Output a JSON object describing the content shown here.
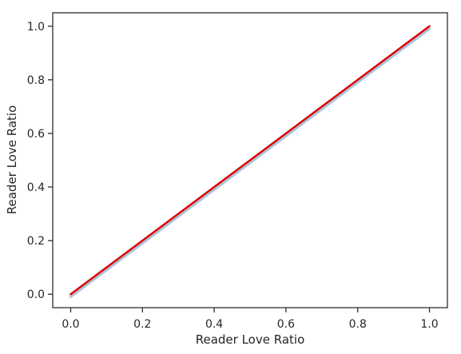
{
  "chart_data": {
    "type": "line",
    "title": "",
    "xlabel": "Reader Love Ratio",
    "ylabel": "Reader Love Ratio",
    "xlim": [
      -0.05,
      1.05
    ],
    "ylim": [
      -0.05,
      1.05
    ],
    "grid": false,
    "legend": "none",
    "xticks": [
      0.0,
      0.2,
      0.4,
      0.6,
      0.8,
      1.0
    ],
    "yticks": [
      0.0,
      0.2,
      0.4,
      0.6,
      0.8,
      1.0
    ],
    "xtick_labels": [
      "0.0",
      "0.2",
      "0.4",
      "0.6",
      "0.8",
      "1.0"
    ],
    "ytick_labels": [
      "0.0",
      "0.2",
      "0.4",
      "0.6",
      "0.8",
      "1.0"
    ],
    "series": [
      {
        "color": "#a9c6de",
        "x": [
          0.0,
          0.2,
          0.4,
          0.6,
          0.8,
          1.0
        ],
        "y": [
          -0.01,
          0.19,
          0.39,
          0.59,
          0.79,
          0.99
        ]
      },
      {
        "color": "#e00000",
        "x": [
          0.0,
          0.2,
          0.4,
          0.6,
          0.8,
          1.0
        ],
        "y": [
          0.0,
          0.2,
          0.4,
          0.6,
          0.8,
          1.0
        ]
      }
    ]
  }
}
